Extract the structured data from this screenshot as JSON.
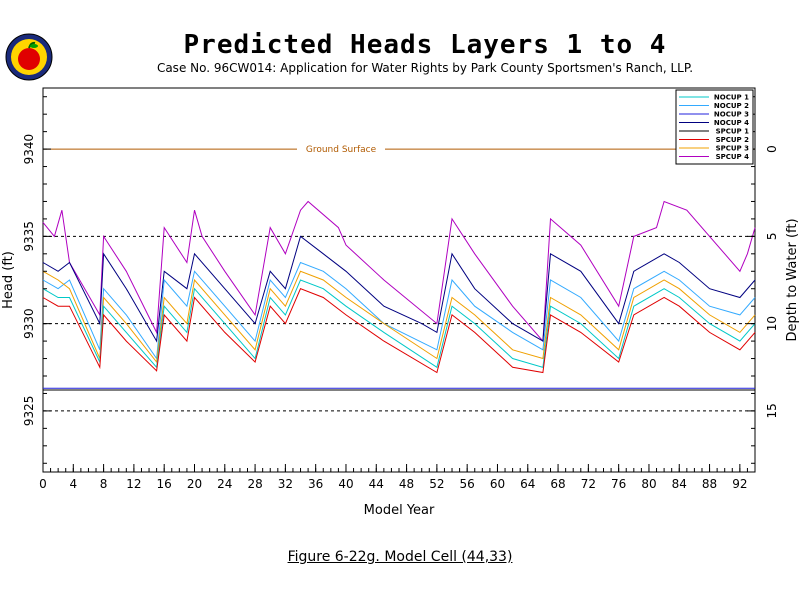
{
  "header": {
    "title": "Predicted Heads Layers 1 to 4",
    "subtitle": "Case No. 96CW014: Application for Water Rights by Park County Sportsmen's Ranch, LLP."
  },
  "caption": "Figure 6-22g.  Model Cell (44,33)",
  "colors": {
    "NOCUP 1": "#00c8c8",
    "NOCUP 2": "#33aaff",
    "NOCUP 3": "#2222dd",
    "NOCUP 4": "#000080",
    "SPCUP 1": "#000000",
    "SPCUP 2": "#e00000",
    "SPCUP 3": "#f0a000",
    "SPCUP 4": "#b000c0",
    "ground": "#b05a00"
  },
  "chart_data": {
    "type": "line",
    "title": "Predicted Heads Layers 1 to 4",
    "xlabel": "Model Year",
    "ylabel": "Head (ft)",
    "y2label": "Depth to Water (ft)",
    "xlim": [
      0,
      94
    ],
    "ylim": [
      9321.5,
      9343.5
    ],
    "x_ticks": [
      0,
      4,
      8,
      12,
      16,
      20,
      24,
      28,
      32,
      36,
      40,
      44,
      48,
      52,
      56,
      60,
      64,
      68,
      72,
      76,
      80,
      84,
      88,
      92
    ],
    "y_ticks": [
      9325,
      9330,
      9335,
      9340
    ],
    "y2_ticks": [
      0,
      5,
      10,
      15
    ],
    "ground_surface": {
      "label": "Ground Surface",
      "elevation": 9340
    },
    "reference_lines": [
      9335,
      9330,
      9325
    ],
    "legend": {
      "position": "top-right",
      "entries": [
        "NOCUP 1",
        "NOCUP 2",
        "NOCUP 3",
        "NOCUP 4",
        "SPCUP 1",
        "SPCUP 2",
        "SPCUP 3",
        "SPCUP 4"
      ]
    },
    "series": [
      {
        "name": "SPCUP 4",
        "x": [
          0,
          1.5,
          2.5,
          3.5,
          7.5,
          8,
          11,
          15,
          16,
          19,
          20,
          21,
          24,
          28,
          30,
          32,
          34,
          35,
          39,
          40,
          45,
          52,
          54,
          57,
          62,
          66,
          67,
          71,
          76,
          78,
          81,
          82,
          85,
          88,
          92,
          93,
          94
        ],
        "y": [
          9335.8,
          9335.0,
          9336.5,
          9333.5,
          9330.5,
          9335.0,
          9333.0,
          9329.5,
          9335.5,
          9333.5,
          9336.5,
          9335.0,
          9333.0,
          9330.5,
          9335.5,
          9334.0,
          9336.5,
          9337.0,
          9335.5,
          9334.5,
          9332.5,
          9330.0,
          9336.0,
          9334.0,
          9331.0,
          9329.0,
          9336.0,
          9334.5,
          9331.0,
          9335.0,
          9335.5,
          9337.0,
          9336.5,
          9335.0,
          9333.0,
          9334.0,
          9335.5
        ]
      },
      {
        "name": "NOCUP 4",
        "x": [
          0,
          2,
          3.5,
          7.5,
          8,
          11,
          15,
          16,
          19,
          20,
          24,
          28,
          30,
          32,
          34,
          37,
          40,
          45,
          50,
          52,
          54,
          57,
          62,
          66,
          67,
          71,
          76,
          78,
          82,
          84,
          88,
          92,
          94
        ],
        "y": [
          9333.5,
          9333.0,
          9333.5,
          9330.0,
          9334.0,
          9332.0,
          9329.0,
          9333.0,
          9332.0,
          9334.0,
          9332.0,
          9330.0,
          9333.0,
          9332.0,
          9335.0,
          9334.0,
          9333.0,
          9331.0,
          9330.0,
          9329.5,
          9334.0,
          9332.0,
          9330.0,
          9329.0,
          9334.0,
          9333.0,
          9330.0,
          9333.0,
          9334.0,
          9333.5,
          9332.0,
          9331.5,
          9332.5
        ]
      },
      {
        "name": "NOCUP 2",
        "x": [
          0,
          2,
          3.5,
          7.5,
          8,
          11,
          15,
          16,
          19,
          20,
          24,
          28,
          30,
          32,
          34,
          37,
          40,
          45,
          52,
          54,
          57,
          62,
          66,
          67,
          71,
          76,
          78,
          82,
          84,
          88,
          92,
          94
        ],
        "y": [
          9332.5,
          9332.0,
          9332.5,
          9328.5,
          9332.0,
          9330.5,
          9328.0,
          9332.5,
          9331.0,
          9333.0,
          9331.0,
          9329.0,
          9332.5,
          9331.5,
          9333.5,
          9333.0,
          9332.0,
          9330.0,
          9328.5,
          9332.5,
          9331.0,
          9329.5,
          9328.5,
          9332.5,
          9331.5,
          9329.0,
          9332.0,
          9333.0,
          9332.5,
          9331.0,
          9330.5,
          9331.5
        ]
      },
      {
        "name": "SPCUP 3",
        "x": [
          0,
          2,
          3.5,
          7.5,
          8,
          11,
          15,
          16,
          19,
          20,
          24,
          28,
          30,
          32,
          34,
          37,
          40,
          45,
          52,
          54,
          57,
          62,
          66,
          67,
          71,
          76,
          78,
          82,
          84,
          88,
          92,
          94
        ],
        "y": [
          9333.0,
          9332.5,
          9332.0,
          9328.0,
          9331.5,
          9330.0,
          9327.8,
          9331.5,
          9330.0,
          9332.5,
          9330.5,
          9328.5,
          9332.0,
          9331.0,
          9333.0,
          9332.5,
          9331.5,
          9330.0,
          9328.0,
          9331.5,
          9330.5,
          9328.5,
          9328.0,
          9331.5,
          9330.5,
          9328.5,
          9331.5,
          9332.5,
          9332.0,
          9330.5,
          9329.5,
          9330.5
        ]
      },
      {
        "name": "NOCUP 1",
        "x": [
          0,
          2,
          3.5,
          7.5,
          8,
          11,
          15,
          16,
          19,
          20,
          24,
          28,
          30,
          32,
          34,
          37,
          40,
          45,
          52,
          54,
          57,
          62,
          66,
          67,
          71,
          76,
          78,
          82,
          84,
          88,
          92,
          94
        ],
        "y": [
          9332.0,
          9331.5,
          9331.5,
          9327.8,
          9331.0,
          9329.5,
          9327.5,
          9331.0,
          9329.5,
          9332.0,
          9330.0,
          9328.0,
          9331.5,
          9330.5,
          9332.5,
          9332.0,
          9331.0,
          9329.5,
          9327.5,
          9331.0,
          9330.0,
          9328.0,
          9327.5,
          9331.0,
          9330.0,
          9328.0,
          9331.0,
          9332.0,
          9331.5,
          9330.0,
          9329.0,
          9330.0
        ]
      },
      {
        "name": "SPCUP 2",
        "x": [
          0,
          2,
          3.5,
          7.5,
          8,
          11,
          15,
          16,
          19,
          20,
          24,
          28,
          30,
          32,
          34,
          37,
          40,
          45,
          52,
          54,
          57,
          62,
          66,
          67,
          71,
          76,
          78,
          82,
          84,
          88,
          92,
          94
        ],
        "y": [
          9331.5,
          9331.0,
          9331.0,
          9327.5,
          9330.5,
          9329.0,
          9327.3,
          9330.5,
          9329.0,
          9331.5,
          9329.5,
          9327.8,
          9331.0,
          9330.0,
          9332.0,
          9331.5,
          9330.5,
          9329.0,
          9327.2,
          9330.5,
          9329.5,
          9327.5,
          9327.2,
          9330.5,
          9329.5,
          9327.8,
          9330.5,
          9331.5,
          9331.0,
          9329.5,
          9328.5,
          9329.5
        ]
      },
      {
        "name": "NOCUP 3",
        "x": [
          0,
          94
        ],
        "y": [
          9326.3,
          9326.3
        ]
      },
      {
        "name": "SPCUP 1",
        "x": [
          0,
          94
        ],
        "y": [
          9326.2,
          9326.2
        ]
      }
    ]
  }
}
